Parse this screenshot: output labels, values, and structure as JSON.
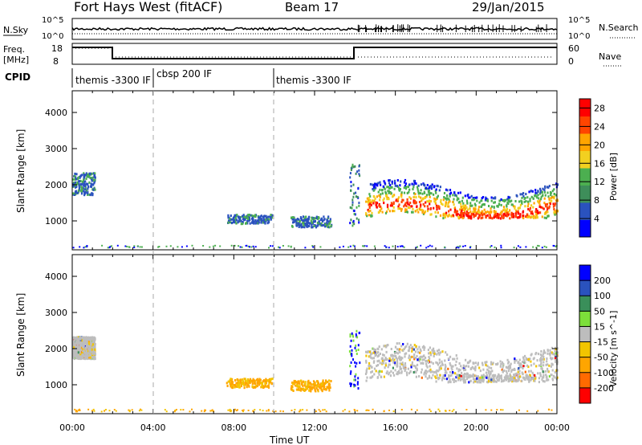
{
  "header": {
    "station": "Fort Hays West (fitACF)",
    "beam": "Beam 17",
    "date": "29/Jan/2015"
  },
  "noise_panel": {
    "left_label": "N.Sky",
    "right_label": "N.Search",
    "left_ticks": [
      "10^5",
      "10^0"
    ],
    "right_ticks": [
      "10^5",
      "10^0"
    ]
  },
  "freq_panel": {
    "left_label": "Freq.",
    "left_unit": "[MHz]",
    "right_label": "Nave",
    "left_ticks": [
      "18",
      "8"
    ],
    "right_ticks": [
      "60",
      "0"
    ]
  },
  "cpid_panel": {
    "label": "CPID",
    "segments": [
      {
        "text": "themis -3300 IF",
        "start_hour": 0
      },
      {
        "text": "cbsp 200 IF",
        "start_hour": 4.0
      },
      {
        "text": "themis -3300 IF",
        "start_hour": 10.0
      }
    ]
  },
  "colors": {
    "power_scale": [
      "#0000ff",
      "#2a52be",
      "#3e8e5a",
      "#4caf50",
      "#f2d020",
      "#ffa500",
      "#ff4500",
      "#ff0000"
    ],
    "velocity_scale": [
      "#ff0000",
      "#ff6a00",
      "#ffa500",
      "#f2c500",
      "#bdbdbd",
      "#7cdf3a",
      "#3a8f5a",
      "#2a52be",
      "#0000ff"
    ],
    "dashed_line": "#aaaaaa"
  },
  "chart_data": [
    {
      "type": "heatmap",
      "title": "",
      "xlabel": "Time UT",
      "ylabel": "Slant Range [km]",
      "xlim": [
        0,
        24
      ],
      "ylim": [
        200,
        4600
      ],
      "x_ticks": [
        "00:00",
        "04:00",
        "08:00",
        "12:00",
        "16:00",
        "20:00",
        "00:00"
      ],
      "y_ticks": [
        1000,
        2000,
        3000,
        4000
      ],
      "colorbar": {
        "label": "Power [dB]",
        "ticks": [
          4,
          8,
          12,
          16,
          20,
          24,
          28
        ],
        "range": [
          0,
          30
        ]
      },
      "scatter_regions": [
        {
          "t0": 0.0,
          "t1": 1.1,
          "r0": 1750,
          "r1": 2350,
          "value": "low"
        },
        {
          "t0": 7.6,
          "t1": 9.9,
          "r0": 950,
          "r1": 1200,
          "value": "low"
        },
        {
          "t0": 10.8,
          "t1": 12.8,
          "r0": 850,
          "r1": 1150,
          "value": "low"
        },
        {
          "t0": 14.5,
          "t1": 24.0,
          "r0": 1100,
          "r1": 2300,
          "value": "high"
        }
      ]
    },
    {
      "type": "heatmap",
      "title": "",
      "xlabel": "Time UT",
      "ylabel": "Slant Range [km]",
      "xlim": [
        0,
        24
      ],
      "ylim": [
        200,
        4600
      ],
      "x_ticks": [
        "00:00",
        "04:00",
        "08:00",
        "12:00",
        "16:00",
        "20:00",
        "00:00"
      ],
      "y_ticks": [
        1000,
        2000,
        3000,
        4000
      ],
      "colorbar": {
        "label": "Velocity [m s^-1]",
        "ticks": [
          200,
          100,
          50,
          15,
          -15,
          -50,
          -100,
          -200
        ],
        "range": [
          -250,
          250
        ]
      },
      "scatter_regions": [
        {
          "t0": 0.0,
          "t1": 1.1,
          "r0": 1750,
          "r1": 2350,
          "value": "ground"
        },
        {
          "t0": 7.6,
          "t1": 9.9,
          "r0": 950,
          "r1": 1200,
          "value": "negative"
        },
        {
          "t0": 10.8,
          "t1": 12.8,
          "r0": 850,
          "r1": 1150,
          "value": "negative"
        },
        {
          "t0": 14.5,
          "t1": 24.0,
          "r0": 1100,
          "r1": 2300,
          "value": "ground"
        }
      ]
    }
  ]
}
